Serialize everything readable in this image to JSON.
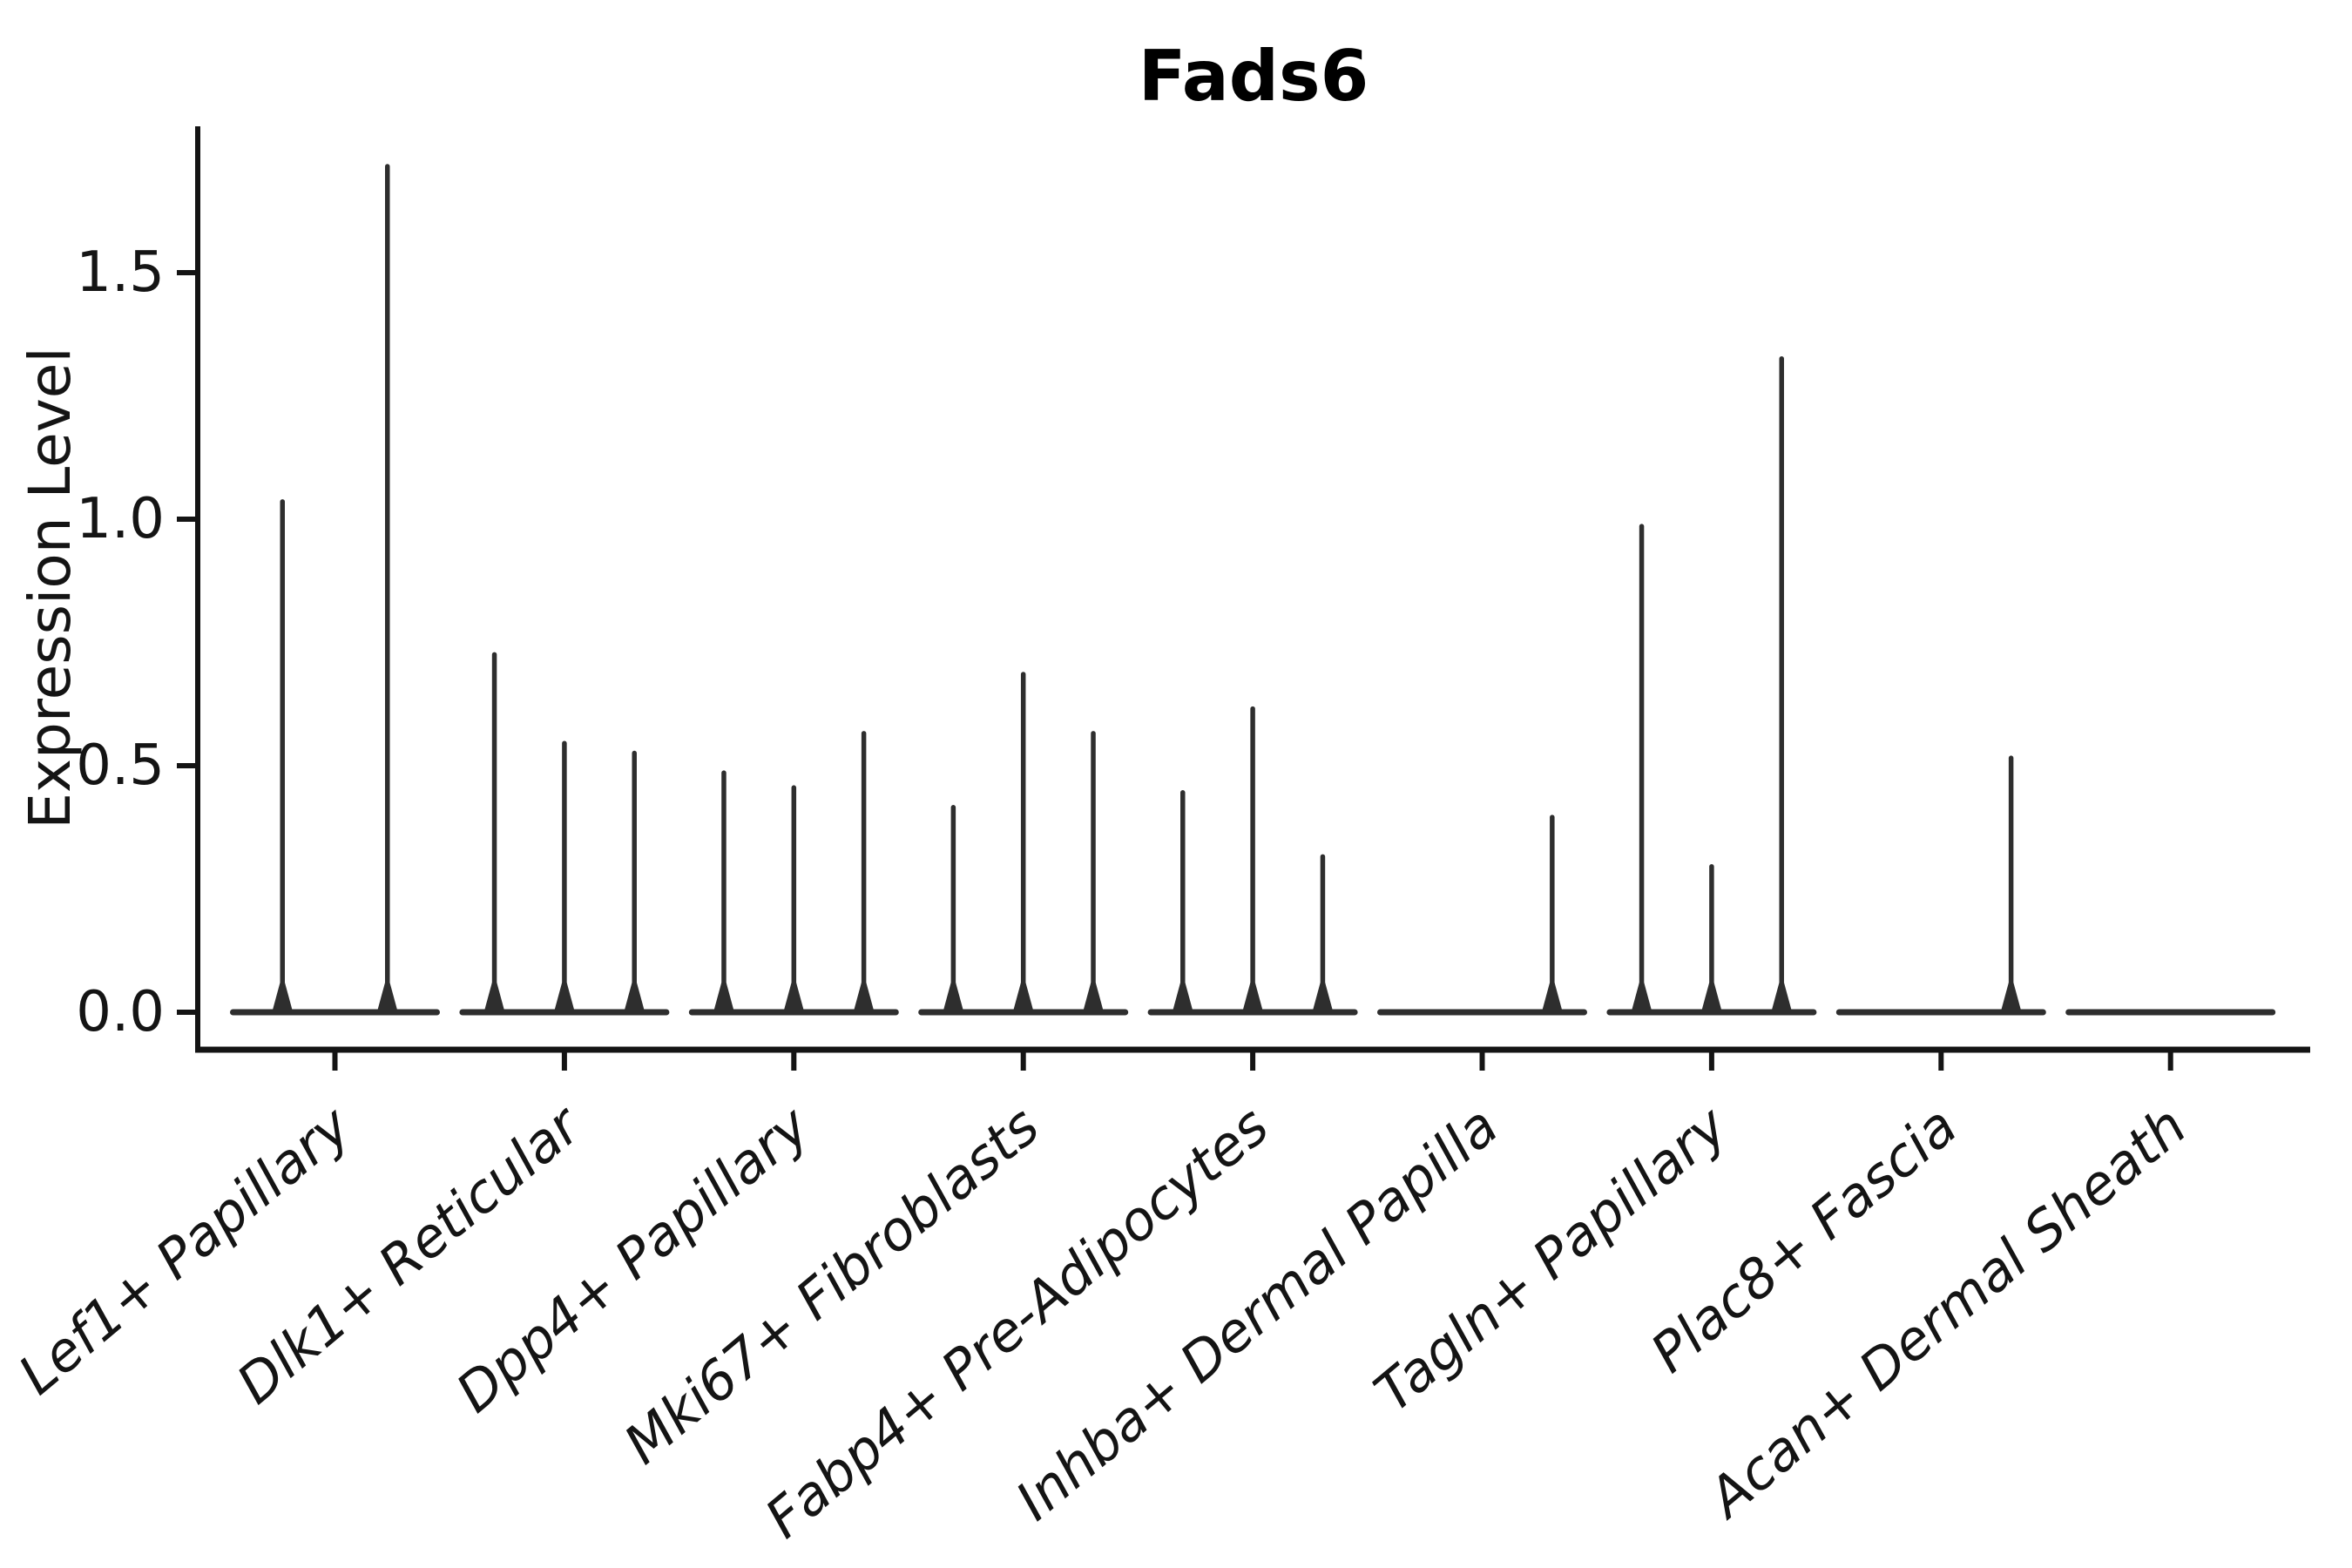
{
  "chart_data": {
    "type": "violin",
    "title": "Fads6",
    "xlabel": "",
    "ylabel": "Expression Level",
    "yticks": [
      0.0,
      0.5,
      1.0,
      1.5
    ],
    "ylim": [
      -0.08,
      1.8
    ],
    "grid": false,
    "legend": "none",
    "ink_color": "#2e2e2e",
    "axis_color": "#141414",
    "categories": [
      "Lef1+ Papillary",
      "Dlk1+ Reticular",
      "Dpp4+ Papillary",
      "Mki67+ Fibroblasts",
      "Fabp4+ Pre-Adipocytes",
      "Inhba+ Dermal Papilla",
      "Tagln+ Papillary",
      "Plac8+ Fascia",
      "Acan+ Dermal Sheath"
    ],
    "violins": [
      {
        "category": "Lef1+ Papillary",
        "spike_heights": [
          1.04,
          1.72
        ]
      },
      {
        "category": "Dlk1+ Reticular",
        "spike_heights": [
          0.73,
          0.55,
          0.53
        ]
      },
      {
        "category": "Dpp4+ Papillary",
        "spike_heights": [
          0.49,
          0.46,
          0.57
        ]
      },
      {
        "category": "Mki67+ Fibroblasts",
        "spike_heights": [
          0.42,
          0.69,
          0.57
        ]
      },
      {
        "category": "Fabp4+ Pre-Adipocytes",
        "spike_heights": [
          0.45,
          0.62,
          0.32
        ]
      },
      {
        "category": "Inhba+ Dermal Papilla",
        "spike_heights": [
          0,
          0,
          0.4
        ]
      },
      {
        "category": "Tagln+ Papillary",
        "spike_heights": [
          0.99,
          0.3,
          1.33
        ]
      },
      {
        "category": "Plac8+ Fascia",
        "spike_heights": [
          0,
          0,
          0.52
        ]
      },
      {
        "category": "Acan+ Dermal Sheath",
        "spike_heights": [
          0,
          0,
          0
        ]
      }
    ]
  }
}
